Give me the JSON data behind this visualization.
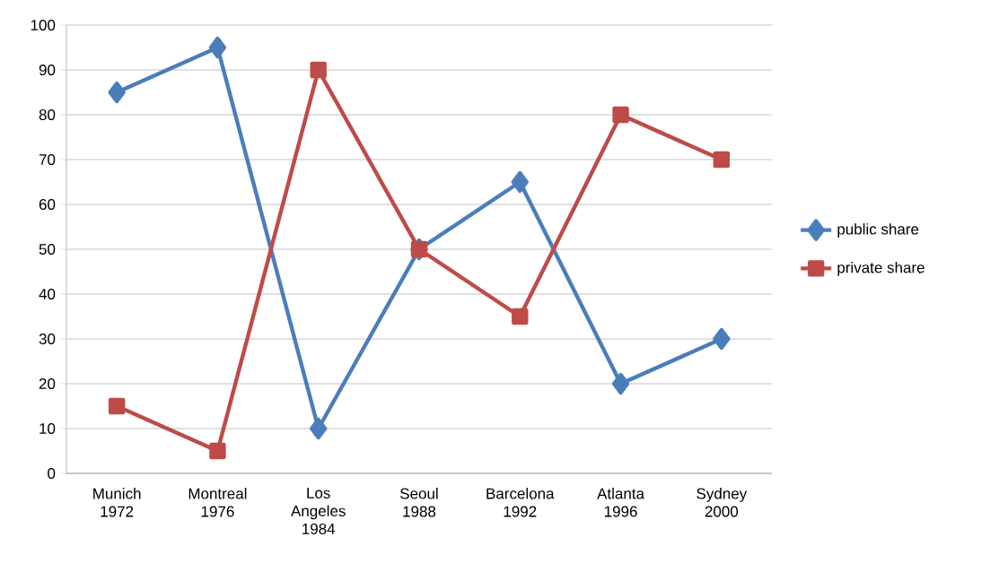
{
  "chart_data": {
    "type": "line",
    "categories": [
      "Munich 1972",
      "Montreal 1976",
      "Los Angeles 1984",
      "Seoul 1988",
      "Barcelona 1992",
      "Atlanta 1996",
      "Sydney 2000"
    ],
    "series": [
      {
        "name": "public share",
        "color": "#4a7ebb",
        "marker": "diamond",
        "values": [
          85,
          95,
          10,
          50,
          65,
          20,
          30
        ]
      },
      {
        "name": "private share",
        "color": "#be4b48",
        "marker": "square",
        "values": [
          15,
          5,
          90,
          50,
          35,
          80,
          70
        ]
      }
    ],
    "ylim": [
      0,
      100
    ],
    "yticks": [
      0,
      10,
      20,
      30,
      40,
      50,
      60,
      70,
      80,
      90,
      100
    ],
    "grid": "y",
    "legend": "right",
    "line_style": "solid"
  }
}
